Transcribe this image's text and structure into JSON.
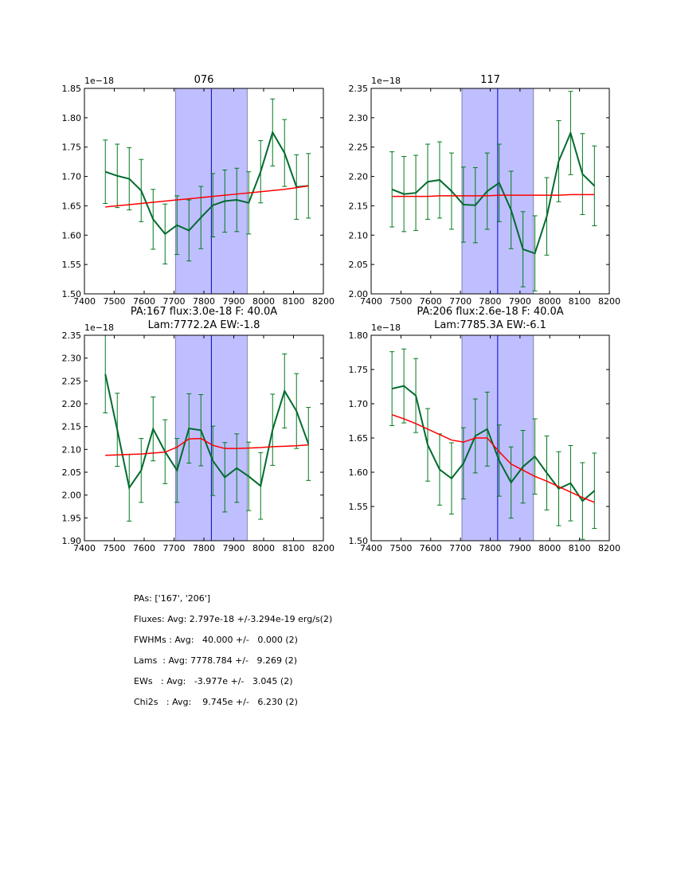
{
  "chart_data": [
    {
      "type": "line",
      "title": "076",
      "subtitle": "",
      "xlabel": "",
      "ylabel": "",
      "offset_label": "1e−18",
      "xlim": [
        7400,
        8200
      ],
      "ylim": [
        1.5,
        1.85
      ],
      "xticks": [
        7400,
        7500,
        7600,
        7700,
        7800,
        7900,
        8000,
        8100,
        8200
      ],
      "yticks": [
        "1.50",
        "1.55",
        "1.60",
        "1.65",
        "1.70",
        "1.75",
        "1.80",
        "1.85"
      ],
      "shaded_region": [
        7705,
        7945
      ],
      "center_line": 7825,
      "x": [
        7470,
        7510,
        7550,
        7590,
        7630,
        7670,
        7710,
        7750,
        7790,
        7830,
        7870,
        7910,
        7950,
        7990,
        8030,
        8070,
        8110,
        8150
      ],
      "series": [
        {
          "name": "data",
          "color": "#006b2e",
          "values": [
            1.708,
            1.701,
            1.696,
            1.676,
            1.627,
            1.602,
            1.617,
            1.608,
            1.63,
            1.651,
            1.658,
            1.66,
            1.655,
            1.708,
            1.775,
            1.74,
            1.682,
            1.684
          ],
          "errors": [
            0.054,
            0.054,
            0.053,
            0.053,
            0.051,
            0.051,
            0.05,
            0.052,
            0.053,
            0.054,
            0.053,
            0.054,
            0.053,
            0.053,
            0.057,
            0.057,
            0.055,
            0.055
          ]
        },
        {
          "name": "fit",
          "color": "#ff0000",
          "values": [
            1.648,
            1.65,
            1.652,
            1.654,
            1.656,
            1.658,
            1.66,
            1.662,
            1.664,
            1.666,
            1.668,
            1.67,
            1.672,
            1.674,
            1.676,
            1.678,
            1.681,
            1.684
          ]
        }
      ]
    },
    {
      "type": "line",
      "title": "117",
      "subtitle": "",
      "xlabel": "",
      "ylabel": "",
      "offset_label": "1e−18",
      "xlim": [
        7400,
        8200
      ],
      "ylim": [
        2.0,
        2.35
      ],
      "xticks": [
        7400,
        7500,
        7600,
        7700,
        7800,
        7900,
        8000,
        8100,
        8200
      ],
      "yticks": [
        "2.00",
        "2.05",
        "2.10",
        "2.15",
        "2.20",
        "2.25",
        "2.30",
        "2.35"
      ],
      "shaded_region": [
        7705,
        7945
      ],
      "center_line": 7825,
      "x": [
        7470,
        7510,
        7550,
        7590,
        7630,
        7670,
        7710,
        7750,
        7790,
        7830,
        7870,
        7910,
        7950,
        7990,
        8030,
        8070,
        8110,
        8150
      ],
      "series": [
        {
          "name": "data",
          "color": "#006b2e",
          "values": [
            2.178,
            2.17,
            2.172,
            2.191,
            2.194,
            2.175,
            2.152,
            2.151,
            2.175,
            2.189,
            2.143,
            2.076,
            2.069,
            2.132,
            2.226,
            2.274,
            2.204,
            2.184
          ],
          "errors": [
            0.064,
            0.064,
            0.064,
            0.064,
            0.065,
            0.065,
            0.064,
            0.064,
            0.065,
            0.066,
            0.066,
            0.064,
            0.064,
            0.066,
            0.069,
            0.071,
            0.069,
            0.068
          ]
        },
        {
          "name": "fit",
          "color": "#ff0000",
          "values": [
            2.166,
            2.166,
            2.166,
            2.166,
            2.167,
            2.167,
            2.167,
            2.167,
            2.167,
            2.168,
            2.168,
            2.168,
            2.168,
            2.168,
            2.168,
            2.169,
            2.169,
            2.169
          ]
        }
      ]
    },
    {
      "type": "line",
      "title": "PA:167 flux:3.0e-18 F: 40.0A",
      "subtitle": "Lam:7772.2A EW:-1.8",
      "xlabel": "",
      "ylabel": "",
      "offset_label": "1e−18",
      "xlim": [
        7400,
        8200
      ],
      "ylim": [
        1.9,
        2.35
      ],
      "xticks": [
        7400,
        7500,
        7600,
        7700,
        7800,
        7900,
        8000,
        8100,
        8200
      ],
      "yticks": [
        "1.90",
        "1.95",
        "2.00",
        "2.05",
        "2.10",
        "2.15",
        "2.20",
        "2.25",
        "2.30",
        "2.35"
      ],
      "shaded_region": [
        7705,
        7945
      ],
      "center_line": 7825,
      "x": [
        7470,
        7510,
        7550,
        7590,
        7630,
        7670,
        7710,
        7750,
        7790,
        7830,
        7870,
        7910,
        7950,
        7990,
        8030,
        8070,
        8110,
        8150
      ],
      "series": [
        {
          "name": "data",
          "color": "#006b2e",
          "values": [
            2.265,
            2.143,
            2.016,
            2.054,
            2.145,
            2.095,
            2.054,
            2.146,
            2.142,
            2.075,
            2.039,
            2.059,
            2.041,
            2.02,
            2.143,
            2.228,
            2.184,
            2.112
          ],
          "errors": [
            0.085,
            0.08,
            0.073,
            0.07,
            0.07,
            0.07,
            0.07,
            0.076,
            0.078,
            0.076,
            0.076,
            0.075,
            0.075,
            0.073,
            0.078,
            0.081,
            0.082,
            0.08
          ]
        },
        {
          "name": "fit",
          "color": "#ff0000",
          "values": [
            2.087,
            2.088,
            2.089,
            2.09,
            2.092,
            2.094,
            2.105,
            2.123,
            2.124,
            2.109,
            2.102,
            2.102,
            2.103,
            2.104,
            2.106,
            2.107,
            2.108,
            2.11
          ]
        }
      ]
    },
    {
      "type": "line",
      "title": "PA:206 flux:2.6e-18 F: 40.0A",
      "subtitle": "Lam:7785.3A EW:-6.1",
      "xlabel": "",
      "ylabel": "",
      "offset_label": "1e−18",
      "xlim": [
        7400,
        8200
      ],
      "ylim": [
        1.5,
        1.8
      ],
      "xticks": [
        7400,
        7500,
        7600,
        7700,
        7800,
        7900,
        8000,
        8100,
        8200
      ],
      "yticks": [
        "1.50",
        "1.55",
        "1.60",
        "1.65",
        "1.70",
        "1.75",
        "1.80"
      ],
      "shaded_region": [
        7705,
        7945
      ],
      "center_line": 7825,
      "x": [
        7470,
        7510,
        7550,
        7590,
        7630,
        7670,
        7710,
        7750,
        7790,
        7830,
        7870,
        7910,
        7950,
        7990,
        8030,
        8070,
        8110,
        8150
      ],
      "series": [
        {
          "name": "data",
          "color": "#006b2e",
          "values": [
            1.722,
            1.726,
            1.712,
            1.64,
            1.604,
            1.591,
            1.613,
            1.653,
            1.663,
            1.617,
            1.585,
            1.608,
            1.623,
            1.599,
            1.576,
            1.584,
            1.558,
            1.573
          ],
          "errors": [
            0.054,
            0.054,
            0.054,
            0.053,
            0.052,
            0.052,
            0.052,
            0.054,
            0.054,
            0.052,
            0.052,
            0.053,
            0.055,
            0.054,
            0.054,
            0.055,
            0.056,
            0.055
          ]
        },
        {
          "name": "fit",
          "color": "#ff0000",
          "values": [
            1.684,
            1.678,
            1.671,
            1.663,
            1.655,
            1.647,
            1.644,
            1.65,
            1.65,
            1.63,
            1.612,
            1.603,
            1.594,
            1.587,
            1.579,
            1.571,
            1.563,
            1.556
          ]
        }
      ]
    }
  ],
  "shading": {
    "fill": "#bfbfff",
    "edge": "#8080b0",
    "center_line": "#0000cc"
  },
  "stats": {
    "pas": "PAs: ['167', '206']",
    "fluxes": "Fluxes: Avg: 2.797e-18 +/-3.294e-19 erg/s(2)",
    "fwhms": "FWHMs : Avg:   40.000 +/-   0.000 (2)",
    "lams": "Lams  : Avg: 7778.784 +/-   9.269 (2)",
    "ews": "EWs   : Avg:   -3.977e +/-   3.045 (2)",
    "chi2s": "Chi2s   : Avg:    9.745e +/-   6.230 (2)"
  }
}
